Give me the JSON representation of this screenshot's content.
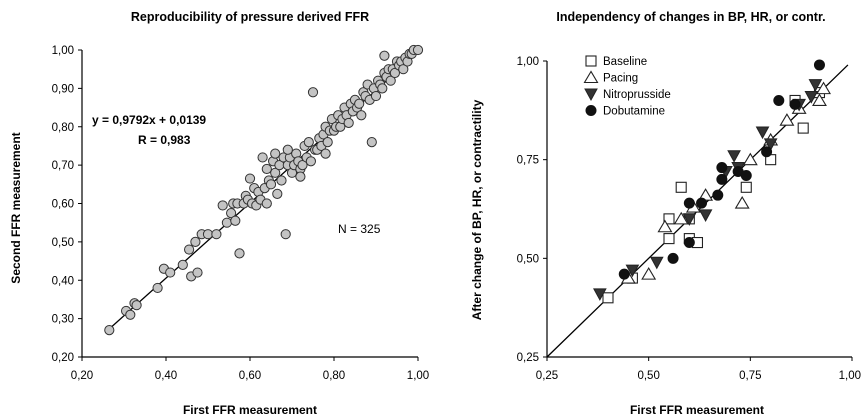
{
  "chart_data": [
    {
      "type": "scatter",
      "title": "Reproducibility of pressure derived FFR",
      "xlabel": "First FFR measurement",
      "ylabel": "Second FFR measurement",
      "xlim": [
        0.2,
        1.0
      ],
      "ylim": [
        0.2,
        1.0
      ],
      "xticks": [
        "0,20",
        "0,40",
        "0,60",
        "0,80",
        "1,00"
      ],
      "yticks": [
        "0,20",
        "0,30",
        "0,40",
        "0,50",
        "0,60",
        "0,70",
        "0,80",
        "0,90",
        "1,00"
      ],
      "grid": false,
      "regression": {
        "slope": 0.9792,
        "intercept": 0.0139,
        "x_range": [
          0.265,
          1.0
        ]
      },
      "annotations": {
        "equation": "y = 0,9792x + 0,0139",
        "r": "R = 0,983",
        "n": "N = 325"
      },
      "marker": {
        "shape": "circle",
        "fill": "#c4c4c4",
        "stroke": "#333333"
      },
      "series": [
        {
          "points": [
            [
              0.265,
              0.27
            ],
            [
              0.305,
              0.32
            ],
            [
              0.315,
              0.31
            ],
            [
              0.325,
              0.34
            ],
            [
              0.33,
              0.335
            ],
            [
              0.38,
              0.38
            ],
            [
              0.395,
              0.43
            ],
            [
              0.41,
              0.42
            ],
            [
              0.44,
              0.44
            ],
            [
              0.455,
              0.48
            ],
            [
              0.46,
              0.41
            ],
            [
              0.47,
              0.5
            ],
            [
              0.475,
              0.42
            ],
            [
              0.485,
              0.52
            ],
            [
              0.5,
              0.52
            ],
            [
              0.52,
              0.52
            ],
            [
              0.535,
              0.595
            ],
            [
              0.545,
              0.55
            ],
            [
              0.555,
              0.575
            ],
            [
              0.56,
              0.6
            ],
            [
              0.565,
              0.555
            ],
            [
              0.57,
              0.6
            ],
            [
              0.575,
              0.47
            ],
            [
              0.585,
              0.6
            ],
            [
              0.59,
              0.62
            ],
            [
              0.595,
              0.61
            ],
            [
              0.6,
              0.665
            ],
            [
              0.605,
              0.6
            ],
            [
              0.61,
              0.64
            ],
            [
              0.615,
              0.595
            ],
            [
              0.62,
              0.63
            ],
            [
              0.625,
              0.61
            ],
            [
              0.63,
              0.72
            ],
            [
              0.635,
              0.64
            ],
            [
              0.64,
              0.6
            ],
            [
              0.645,
              0.66
            ],
            [
              0.65,
              0.65
            ],
            [
              0.655,
              0.71
            ],
            [
              0.66,
              0.68
            ],
            [
              0.665,
              0.625
            ],
            [
              0.67,
              0.7
            ],
            [
              0.675,
              0.66
            ],
            [
              0.68,
              0.72
            ],
            [
              0.685,
              0.52
            ],
            [
              0.69,
              0.7
            ],
            [
              0.695,
              0.72
            ],
            [
              0.7,
              0.68
            ],
            [
              0.705,
              0.7
            ],
            [
              0.71,
              0.73
            ],
            [
              0.715,
              0.71
            ],
            [
              0.72,
              0.69
            ],
            [
              0.725,
              0.7
            ],
            [
              0.73,
              0.75
            ],
            [
              0.735,
              0.72
            ],
            [
              0.74,
              0.76
            ],
            [
              0.745,
              0.71
            ],
            [
              0.75,
              0.89
            ],
            [
              0.755,
              0.74
            ],
            [
              0.76,
              0.74
            ],
            [
              0.765,
              0.77
            ],
            [
              0.77,
              0.75
            ],
            [
              0.775,
              0.78
            ],
            [
              0.78,
              0.8
            ],
            [
              0.785,
              0.76
            ],
            [
              0.79,
              0.79
            ],
            [
              0.795,
              0.82
            ],
            [
              0.8,
              0.79
            ],
            [
              0.805,
              0.8
            ],
            [
              0.81,
              0.83
            ],
            [
              0.815,
              0.8
            ],
            [
              0.82,
              0.82
            ],
            [
              0.825,
              0.85
            ],
            [
              0.83,
              0.83
            ],
            [
              0.835,
              0.81
            ],
            [
              0.84,
              0.86
            ],
            [
              0.845,
              0.84
            ],
            [
              0.85,
              0.87
            ],
            [
              0.855,
              0.85
            ],
            [
              0.86,
              0.86
            ],
            [
              0.865,
              0.83
            ],
            [
              0.87,
              0.89
            ],
            [
              0.875,
              0.88
            ],
            [
              0.88,
              0.91
            ],
            [
              0.885,
              0.87
            ],
            [
              0.89,
              0.76
            ],
            [
              0.895,
              0.9
            ],
            [
              0.9,
              0.88
            ],
            [
              0.905,
              0.92
            ],
            [
              0.91,
              0.91
            ],
            [
              0.915,
              0.9
            ],
            [
              0.92,
              0.94
            ],
            [
              0.925,
              0.93
            ],
            [
              0.93,
              0.95
            ],
            [
              0.935,
              0.92
            ],
            [
              0.94,
              0.95
            ],
            [
              0.945,
              0.94
            ],
            [
              0.95,
              0.97
            ],
            [
              0.955,
              0.96
            ],
            [
              0.96,
              0.97
            ],
            [
              0.965,
              0.95
            ],
            [
              0.97,
              0.98
            ],
            [
              0.975,
              0.97
            ],
            [
              0.98,
              0.99
            ],
            [
              0.985,
              0.99
            ],
            [
              0.99,
              1.0
            ],
            [
              1.0,
              1.0
            ],
            [
              0.66,
              0.73
            ],
            [
              0.72,
              0.67
            ],
            [
              0.78,
              0.73
            ],
            [
              0.69,
              0.74
            ],
            [
              0.64,
              0.69
            ],
            [
              0.92,
              0.985
            ]
          ]
        }
      ]
    },
    {
      "type": "scatter",
      "title": "Independency of changes in BP, HR, or contr.",
      "xlabel": "First FFR measurement",
      "ylabel": "After change of BP, HR, or contractility",
      "xlim": [
        0.25,
        1.0
      ],
      "ylim": [
        0.25,
        1.0
      ],
      "xticks": [
        "0,25",
        "0,50",
        "0,75",
        "1,00"
      ],
      "yticks": [
        "0,25",
        "0,50",
        "0,75",
        "1,00"
      ],
      "grid": false,
      "identity_line": true,
      "legend_position": "top-left",
      "series": [
        {
          "name": "Baseline",
          "marker": "open-square",
          "points": [
            [
              0.4,
              0.4
            ],
            [
              0.46,
              0.45
            ],
            [
              0.55,
              0.55
            ],
            [
              0.55,
              0.6
            ],
            [
              0.58,
              0.68
            ],
            [
              0.6,
              0.55
            ],
            [
              0.6,
              0.6
            ],
            [
              0.62,
              0.54
            ],
            [
              0.74,
              0.68
            ],
            [
              0.8,
              0.75
            ],
            [
              0.86,
              0.9
            ],
            [
              0.88,
              0.83
            ],
            [
              0.92,
              0.92
            ]
          ]
        },
        {
          "name": "Pacing",
          "marker": "open-triangle",
          "points": [
            [
              0.45,
              0.45
            ],
            [
              0.5,
              0.46
            ],
            [
              0.54,
              0.58
            ],
            [
              0.58,
              0.6
            ],
            [
              0.61,
              0.63
            ],
            [
              0.64,
              0.66
            ],
            [
              0.73,
              0.64
            ],
            [
              0.75,
              0.75
            ],
            [
              0.8,
              0.8
            ],
            [
              0.84,
              0.85
            ],
            [
              0.87,
              0.88
            ],
            [
              0.92,
              0.9
            ],
            [
              0.93,
              0.93
            ]
          ]
        },
        {
          "name": "Nitroprusside",
          "marker": "filled-inverted-triangle",
          "points": [
            [
              0.38,
              0.41
            ],
            [
              0.46,
              0.47
            ],
            [
              0.52,
              0.49
            ],
            [
              0.6,
              0.6
            ],
            [
              0.64,
              0.61
            ],
            [
              0.69,
              0.72
            ],
            [
              0.71,
              0.76
            ],
            [
              0.72,
              0.73
            ],
            [
              0.78,
              0.82
            ],
            [
              0.8,
              0.79
            ],
            [
              0.87,
              0.89
            ],
            [
              0.9,
              0.91
            ],
            [
              0.91,
              0.94
            ]
          ]
        },
        {
          "name": "Dobutamine",
          "marker": "filled-circle",
          "points": [
            [
              0.44,
              0.46
            ],
            [
              0.56,
              0.5
            ],
            [
              0.6,
              0.54
            ],
            [
              0.6,
              0.64
            ],
            [
              0.63,
              0.64
            ],
            [
              0.67,
              0.66
            ],
            [
              0.68,
              0.73
            ],
            [
              0.68,
              0.7
            ],
            [
              0.72,
              0.72
            ],
            [
              0.74,
              0.71
            ],
            [
              0.79,
              0.77
            ],
            [
              0.82,
              0.9
            ],
            [
              0.86,
              0.89
            ],
            [
              0.92,
              0.99
            ]
          ]
        }
      ]
    }
  ]
}
